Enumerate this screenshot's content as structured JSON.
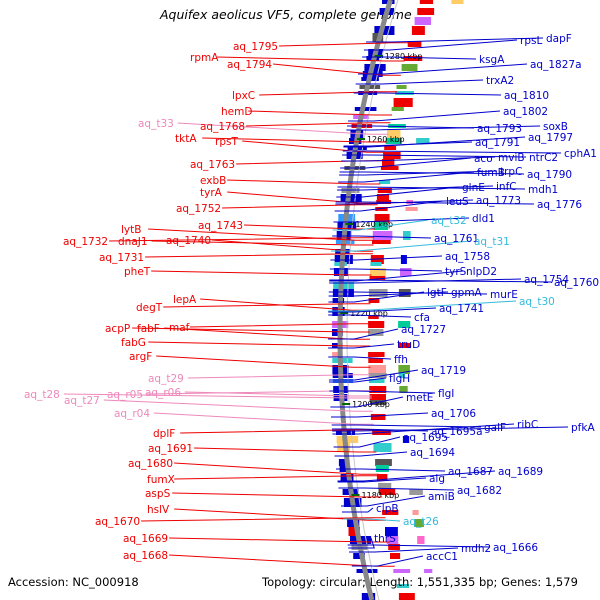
{
  "title": "Aquifex aeolicus VF5, complete genome",
  "footer": {
    "accession": "Accession: NC_000918",
    "summary": "Topology: circular; Length: 1,551,335 bp; Genes: 1,579"
  },
  "colors": {
    "reverse_gene": "#ee0000",
    "forward_gene": "#0000cc",
    "trna": "#33bbdd",
    "rrna": "#ee88bb",
    "backbone": "#888888",
    "tick": "#006600"
  },
  "ticks": [
    "1280 kbp",
    "1260 kbp",
    "1240 kbp",
    "1220 kbp",
    "1200 kbp",
    "1180 kbp"
  ],
  "left_labels": [
    {
      "text": "aq_1795",
      "kind": "gene"
    },
    {
      "text": "rpmA",
      "kind": "gene"
    },
    {
      "text": "aq_1794",
      "kind": "gene"
    },
    {
      "text": "lpxC",
      "kind": "gene"
    },
    {
      "text": "hemD",
      "kind": "gene"
    },
    {
      "text": "aq_t33",
      "kind": "rrna"
    },
    {
      "text": "aq_1768",
      "kind": "gene"
    },
    {
      "text": "tktA",
      "kind": "gene"
    },
    {
      "text": "rpsT",
      "kind": "gene"
    },
    {
      "text": "aq_1763",
      "kind": "gene"
    },
    {
      "text": "exbB",
      "kind": "gene"
    },
    {
      "text": "tyrA",
      "kind": "gene"
    },
    {
      "text": "aq_1752",
      "kind": "gene"
    },
    {
      "text": "aq_1743",
      "kind": "gene"
    },
    {
      "text": "lytB",
      "kind": "gene"
    },
    {
      "text": "aq_1732",
      "kind": "gene"
    },
    {
      "text": "dnaJ1",
      "kind": "gene"
    },
    {
      "text": "aq_1740",
      "kind": "gene"
    },
    {
      "text": "aq_1731",
      "kind": "gene"
    },
    {
      "text": "pheT",
      "kind": "gene"
    },
    {
      "text": "lepA",
      "kind": "gene"
    },
    {
      "text": "degT",
      "kind": "gene"
    },
    {
      "text": "acpP",
      "kind": "gene"
    },
    {
      "text": "fabF",
      "kind": "gene"
    },
    {
      "text": "maf",
      "kind": "gene"
    },
    {
      "text": "fabG",
      "kind": "gene"
    },
    {
      "text": "argF",
      "kind": "gene"
    },
    {
      "text": "aq_t29",
      "kind": "rrna"
    },
    {
      "text": "aq_t28",
      "kind": "rrna"
    },
    {
      "text": "aq_t27",
      "kind": "rrna"
    },
    {
      "text": "aq_r05",
      "kind": "rrna"
    },
    {
      "text": "aq_r06",
      "kind": "rrna"
    },
    {
      "text": "aq_r04",
      "kind": "rrna"
    },
    {
      "text": "dplF",
      "kind": "gene"
    },
    {
      "text": "aq_1691",
      "kind": "gene"
    },
    {
      "text": "aq_1680",
      "kind": "gene"
    },
    {
      "text": "fumX",
      "kind": "gene"
    },
    {
      "text": "aspS",
      "kind": "gene"
    },
    {
      "text": "hslV",
      "kind": "gene"
    },
    {
      "text": "aq_1670",
      "kind": "gene"
    },
    {
      "text": "aq_1669",
      "kind": "gene"
    },
    {
      "text": "aq_1668",
      "kind": "gene"
    }
  ],
  "right_labels": [
    {
      "text": "rpsL",
      "kind": "gene"
    },
    {
      "text": "dapF",
      "kind": "gene"
    },
    {
      "text": "ksgA",
      "kind": "gene"
    },
    {
      "text": "aq_1827a",
      "kind": "gene"
    },
    {
      "text": "trxA2",
      "kind": "gene"
    },
    {
      "text": "aq_1810",
      "kind": "gene"
    },
    {
      "text": "aq_1802",
      "kind": "gene"
    },
    {
      "text": "soxB",
      "kind": "gene"
    },
    {
      "text": "aq_1793",
      "kind": "gene"
    },
    {
      "text": "aq_1797",
      "kind": "gene"
    },
    {
      "text": "aq_1791",
      "kind": "gene"
    },
    {
      "text": "cphA1",
      "kind": "gene"
    },
    {
      "text": "aco",
      "kind": "gene"
    },
    {
      "text": "mviB",
      "kind": "gene"
    },
    {
      "text": "ntrC2",
      "kind": "gene"
    },
    {
      "text": "fumB",
      "kind": "gene"
    },
    {
      "text": "trpC",
      "kind": "gene"
    },
    {
      "text": "aq_1790",
      "kind": "gene"
    },
    {
      "text": "glnE",
      "kind": "gene"
    },
    {
      "text": "infC",
      "kind": "gene"
    },
    {
      "text": "mdh1",
      "kind": "gene"
    },
    {
      "text": "leuS",
      "kind": "gene"
    },
    {
      "text": "aq_1773",
      "kind": "gene"
    },
    {
      "text": "aq_1776",
      "kind": "gene"
    },
    {
      "text": "aq_t32",
      "kind": "trna"
    },
    {
      "text": "dld1",
      "kind": "gene"
    },
    {
      "text": "aq_1761",
      "kind": "gene"
    },
    {
      "text": "aq_t31",
      "kind": "trna"
    },
    {
      "text": "aq_1758",
      "kind": "gene"
    },
    {
      "text": "tyrS",
      "kind": "gene"
    },
    {
      "text": "nlpD2",
      "kind": "gene"
    },
    {
      "text": "aq_1754",
      "kind": "gene"
    },
    {
      "text": "aq_1760",
      "kind": "gene"
    },
    {
      "text": "lgtF",
      "kind": "gene"
    },
    {
      "text": "gpmA",
      "kind": "gene"
    },
    {
      "text": "murE",
      "kind": "gene"
    },
    {
      "text": "aq_t30",
      "kind": "trna"
    },
    {
      "text": "aq_1741",
      "kind": "gene"
    },
    {
      "text": "cfa",
      "kind": "gene"
    },
    {
      "text": "aq_1727",
      "kind": "gene"
    },
    {
      "text": "truD",
      "kind": "gene"
    },
    {
      "text": "ffh",
      "kind": "gene"
    },
    {
      "text": "aq_1719",
      "kind": "gene"
    },
    {
      "text": "flgH",
      "kind": "gene"
    },
    {
      "text": "flgI",
      "kind": "gene"
    },
    {
      "text": "metE",
      "kind": "gene"
    },
    {
      "text": "aq_1706",
      "kind": "gene"
    },
    {
      "text": "galF",
      "kind": "gene"
    },
    {
      "text": "ribC",
      "kind": "gene"
    },
    {
      "text": "pfkA",
      "kind": "gene"
    },
    {
      "text": "aq_1695a",
      "kind": "gene"
    },
    {
      "text": "aq_1695",
      "kind": "gene"
    },
    {
      "text": "aq_1694",
      "kind": "gene"
    },
    {
      "text": "aq_1687",
      "kind": "gene"
    },
    {
      "text": "aq_1689",
      "kind": "gene"
    },
    {
      "text": "alg",
      "kind": "gene"
    },
    {
      "text": "aq_1682",
      "kind": "gene"
    },
    {
      "text": "amiB",
      "kind": "gene"
    },
    {
      "text": "clpB",
      "kind": "gene"
    },
    {
      "text": "aq_t26",
      "kind": "trna"
    },
    {
      "text": "thrS",
      "kind": "gene"
    },
    {
      "text": "mdh2",
      "kind": "gene"
    },
    {
      "text": "aq_1666",
      "kind": "gene"
    },
    {
      "text": "accC1",
      "kind": "gene"
    }
  ]
}
